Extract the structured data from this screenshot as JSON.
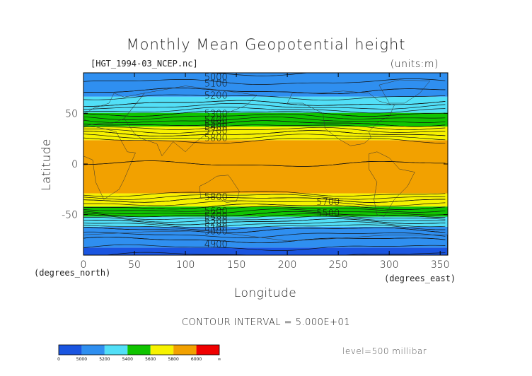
{
  "chart_data": {
    "type": "heatmap",
    "title": "Monthly Mean Geopotential height",
    "subtitle": "[HGT_1994-03_NCEP.nc]",
    "units": "(units:m)",
    "xlabel": "Longitude",
    "ylabel": "Latitude",
    "x_unit_label": "(degrees_east)",
    "y_unit_label": "(degrees_north)",
    "xlim": [
      0,
      357.5
    ],
    "ylim": [
      -90,
      90
    ],
    "x_ticks": [
      0,
      50,
      100,
      150,
      200,
      250,
      300,
      350
    ],
    "y_ticks": [
      -50,
      0,
      50
    ],
    "contour_interval_text": "CONTOUR INTERVAL = 5.000E+01",
    "level_text": "level=500 millibar",
    "colorbar": {
      "labels": [
        "0",
        "5000",
        "5200",
        "5400",
        "5600",
        "5800",
        "6000",
        "∞"
      ],
      "colors": [
        "#1a55e0",
        "#2f8ff0",
        "#52dff7",
        "#10c400",
        "#f7f200",
        "#f2a100",
        "#f00000"
      ]
    },
    "zonal_profile": [
      {
        "lat": -90,
        "value": 4950
      },
      {
        "lat": -75,
        "value": 5050
      },
      {
        "lat": -65,
        "value": 5150
      },
      {
        "lat": -57,
        "value": 5300
      },
      {
        "lat": -50,
        "value": 5450
      },
      {
        "lat": -42,
        "value": 5600
      },
      {
        "lat": -35,
        "value": 5700
      },
      {
        "lat": -28,
        "value": 5820
      },
      {
        "lat": 0,
        "value": 5850
      },
      {
        "lat": 22,
        "value": 5820
      },
      {
        "lat": 30,
        "value": 5700
      },
      {
        "lat": 40,
        "value": 5550
      },
      {
        "lat": 50,
        "value": 5400
      },
      {
        "lat": 60,
        "value": 5250
      },
      {
        "lat": 72,
        "value": 5150
      },
      {
        "lat": 90,
        "value": 5050
      }
    ],
    "contour_labels": [
      {
        "text": "5000",
        "lon": 130,
        "lat": 86
      },
      {
        "text": "5100",
        "lon": 130,
        "lat": 80
      },
      {
        "text": "5200",
        "lon": 130,
        "lat": 68
      },
      {
        "text": "5300",
        "lon": 130,
        "lat": 50
      },
      {
        "text": "5400",
        "lon": 130,
        "lat": 44
      },
      {
        "text": "5500",
        "lon": 130,
        "lat": 40
      },
      {
        "text": "5600",
        "lon": 130,
        "lat": 37
      },
      {
        "text": "5700",
        "lon": 130,
        "lat": 33
      },
      {
        "text": "5800",
        "lon": 130,
        "lat": 26
      },
      {
        "text": "5800",
        "lon": 130,
        "lat": -32
      },
      {
        "text": "5700",
        "lon": 240,
        "lat": -37
      },
      {
        "text": "5600",
        "lon": 130,
        "lat": -46
      },
      {
        "text": "5500",
        "lon": 240,
        "lat": -48
      },
      {
        "text": "5400",
        "lon": 130,
        "lat": -51
      },
      {
        "text": "5300",
        "lon": 130,
        "lat": -55
      },
      {
        "text": "5200",
        "lon": 130,
        "lat": -58
      },
      {
        "text": "5100",
        "lon": 130,
        "lat": -62
      },
      {
        "text": "5000",
        "lon": 130,
        "lat": -66
      },
      {
        "text": "4900",
        "lon": 130,
        "lat": -79
      }
    ]
  }
}
